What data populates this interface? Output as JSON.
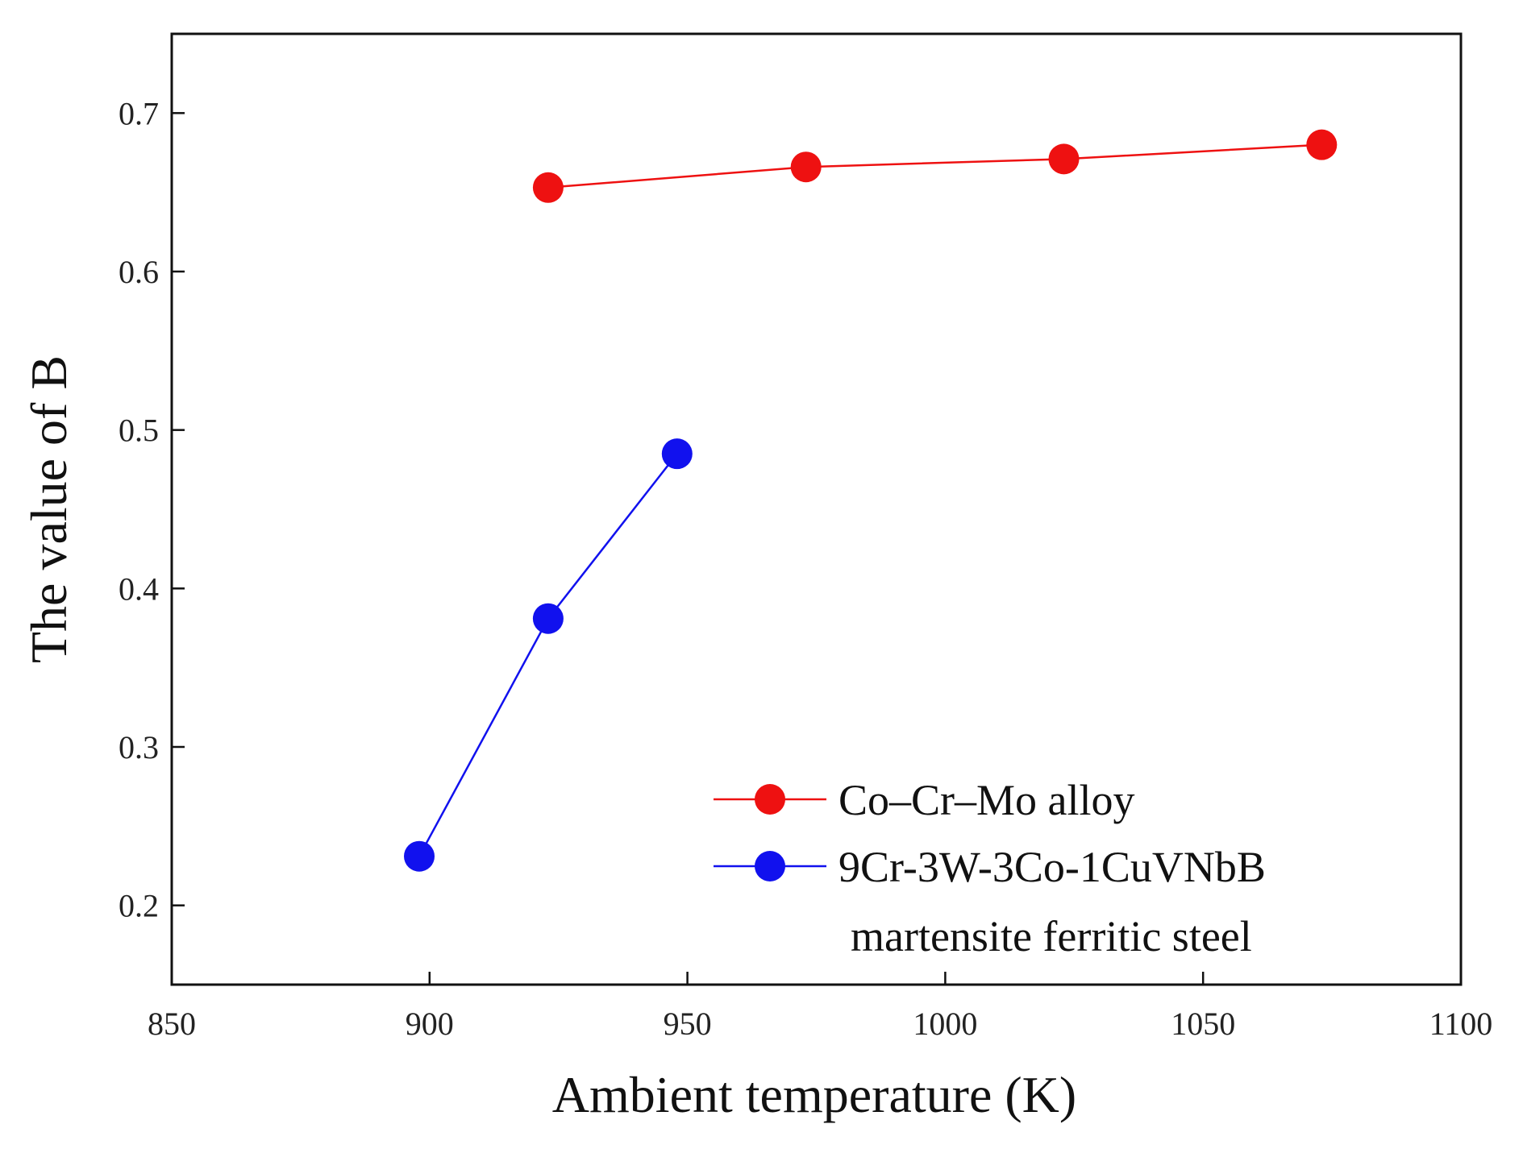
{
  "chart_data": {
    "type": "line",
    "title": "",
    "xlabel": "Ambient temperature (K)",
    "ylabel": "The value of B",
    "xlim": [
      850,
      1100
    ],
    "ylim": [
      0.15,
      0.75
    ],
    "xticks": [
      850,
      900,
      950,
      1000,
      1050,
      1100
    ],
    "xtick_labels": [
      "850",
      "900",
      "950",
      "1000",
      "1050",
      "1100"
    ],
    "yticks": [
      0.2,
      0.3,
      0.4,
      0.5,
      0.6,
      0.7
    ],
    "ytick_labels": [
      "0.2",
      "0.3",
      "0.4",
      "0.5",
      "0.6",
      "0.7"
    ],
    "grid": false,
    "legend_position": "bottom-right",
    "series": [
      {
        "name": "Co–Cr–Mo alloy",
        "color": "#ee1111",
        "x": [
          923,
          973,
          1023,
          1073
        ],
        "y": [
          0.653,
          0.666,
          0.671,
          0.68
        ]
      },
      {
        "name": "9Cr-3W-3Co-1CuVNbB",
        "name_line2": "martensite ferritic steel",
        "color": "#1111ee",
        "x": [
          898,
          923,
          948
        ],
        "y": [
          0.231,
          0.381,
          0.485
        ]
      }
    ]
  }
}
